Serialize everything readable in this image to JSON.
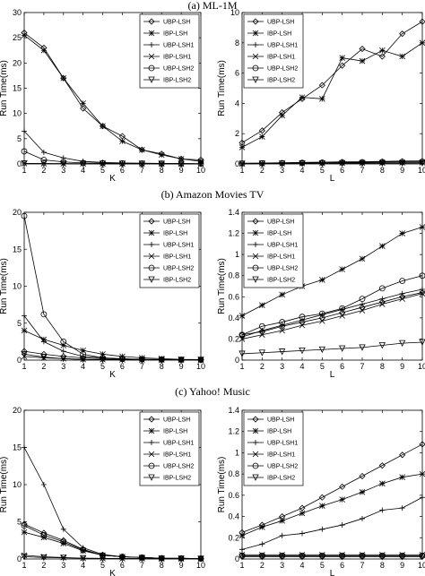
{
  "captions": [
    "(a) ML-1M",
    "(b) Amazon Movies TV",
    "(c) Yahoo! Music"
  ],
  "legend_labels": [
    "UBP-LSH",
    "IBP-LSH",
    "UBP-LSH1",
    "IBP-LSH1",
    "UBP-LSH2",
    "IBP-LSH2"
  ],
  "chart_data": [
    {
      "type": "line",
      "caption_index": 0,
      "xlabel": "K",
      "ylabel": "Run Time(ms)",
      "x": [
        1,
        2,
        3,
        4,
        5,
        6,
        7,
        8,
        9,
        10
      ],
      "xlim": [
        1,
        10
      ],
      "ylim": [
        0,
        30
      ],
      "xticks": [
        1,
        2,
        3,
        4,
        5,
        6,
        7,
        8,
        9,
        10
      ],
      "yticks": [
        0,
        5,
        10,
        15,
        20,
        25,
        30
      ],
      "legend_position": "top-right",
      "series": [
        {
          "name": "UBP-LSH",
          "marker": "diamond",
          "values": [
            26,
            23,
            17,
            11,
            7.5,
            5.5,
            2.8,
            2,
            1,
            0.8
          ]
        },
        {
          "name": "IBP-LSH",
          "marker": "star",
          "values": [
            25.5,
            22.5,
            17,
            12,
            7.5,
            4.5,
            2.8,
            1.8,
            1,
            0.5
          ]
        },
        {
          "name": "UBP-LSH1",
          "marker": "plus",
          "values": [
            6.5,
            2.3,
            1.2,
            0.5,
            0.3,
            0.2,
            0.15,
            0.1,
            0.1,
            0.05
          ]
        },
        {
          "name": "UBP-LSH2",
          "marker": "x",
          "values": [
            0.1,
            0.08,
            0.06,
            0.05,
            0.05,
            0.04,
            0.04,
            0.03,
            0.03,
            0.03
          ]
        },
        {
          "name": "IBP-LSH1",
          "marker": "circle",
          "values": [
            2.5,
            0.8,
            0.4,
            0.2,
            0.15,
            0.1,
            0.08,
            0.06,
            0.05,
            0.04
          ]
        },
        {
          "name": "IBP-LSH2",
          "marker": "triangle",
          "values": [
            0.08,
            0.06,
            0.05,
            0.04,
            0.04,
            0.03,
            0.03,
            0.03,
            0.02,
            0.02
          ]
        }
      ]
    },
    {
      "type": "line",
      "caption_index": 0,
      "xlabel": "L",
      "ylabel": "Run Time(ms)",
      "x": [
        1,
        2,
        3,
        4,
        5,
        6,
        7,
        8,
        9,
        10
      ],
      "xlim": [
        1,
        10
      ],
      "ylim": [
        0,
        10
      ],
      "xticks": [
        1,
        2,
        3,
        4,
        5,
        6,
        7,
        8,
        9,
        10
      ],
      "yticks": [
        0,
        2,
        4,
        6,
        8,
        10
      ],
      "legend_position": "top-left",
      "series": [
        {
          "name": "UBP-LSH",
          "marker": "diamond",
          "values": [
            1.4,
            2.2,
            3.4,
            4.3,
            5.2,
            6.5,
            7.6,
            7.1,
            8.6,
            9.4
          ]
        },
        {
          "name": "IBP-LSH",
          "marker": "star",
          "values": [
            1.1,
            1.8,
            3.2,
            4.4,
            4.3,
            7,
            6.8,
            7.5,
            7.1,
            8
          ]
        },
        {
          "name": "UBP-LSH1",
          "marker": "plus",
          "values": [
            0.05,
            0.06,
            0.08,
            0.1,
            0.12,
            0.14,
            0.15,
            0.17,
            0.19,
            0.2
          ]
        },
        {
          "name": "UBP-LSH2",
          "marker": "x",
          "values": [
            0.02,
            0.03,
            0.03,
            0.04,
            0.05,
            0.06,
            0.07,
            0.07,
            0.08,
            0.09
          ]
        },
        {
          "name": "IBP-LSH1",
          "marker": "circle",
          "values": [
            0.03,
            0.04,
            0.05,
            0.07,
            0.09,
            0.1,
            0.11,
            0.13,
            0.14,
            0.15
          ]
        },
        {
          "name": "IBP-LSH2",
          "marker": "triangle",
          "values": [
            0.01,
            0.02,
            0.02,
            0.03,
            0.03,
            0.04,
            0.04,
            0.05,
            0.05,
            0.06
          ]
        }
      ]
    },
    {
      "type": "line",
      "caption_index": 1,
      "xlabel": "K",
      "ylabel": "Run Time(ms)",
      "x": [
        1,
        2,
        3,
        4,
        5,
        6,
        7,
        8,
        9,
        10
      ],
      "xlim": [
        1,
        10
      ],
      "ylim": [
        0,
        20
      ],
      "xticks": [
        1,
        2,
        3,
        4,
        5,
        6,
        7,
        8,
        9,
        10
      ],
      "yticks": [
        0,
        5,
        10,
        15,
        20
      ],
      "legend_position": "top-right",
      "series": [
        {
          "name": "UBP-LSH",
          "marker": "diamond",
          "values": [
            1.2,
            0.8,
            0.5,
            0.3,
            0.2,
            0.15,
            0.1,
            0.08,
            0.06,
            0.05
          ]
        },
        {
          "name": "IBP-LSH",
          "marker": "star",
          "values": [
            4,
            2.8,
            2,
            1.3,
            0.8,
            0.5,
            0.3,
            0.2,
            0.1,
            0.08
          ]
        },
        {
          "name": "UBP-LSH1",
          "marker": "plus",
          "values": [
            6,
            2.5,
            1.2,
            0.5,
            0.3,
            0.2,
            0.1,
            0.08,
            0.05,
            0.04
          ]
        },
        {
          "name": "UBP-LSH2",
          "marker": "x",
          "values": [
            0.5,
            0.3,
            0.2,
            0.1,
            0.08,
            0.06,
            0.05,
            0.04,
            0.03,
            0.03
          ]
        },
        {
          "name": "IBP-LSH1",
          "marker": "circle",
          "values": [
            19.5,
            6.2,
            2.5,
            0.8,
            0.3,
            0.15,
            0.1,
            0.07,
            0.05,
            0.04
          ]
        },
        {
          "name": "IBP-LSH2",
          "marker": "triangle",
          "values": [
            0.8,
            0.4,
            0.2,
            0.1,
            0.06,
            0.05,
            0.04,
            0.03,
            0.03,
            0.02
          ]
        }
      ]
    },
    {
      "type": "line",
      "caption_index": 1,
      "xlabel": "L",
      "ylabel": "Run Time(ms)",
      "x": [
        1,
        2,
        3,
        4,
        5,
        6,
        7,
        8,
        9,
        10
      ],
      "xlim": [
        1,
        10
      ],
      "ylim": [
        0,
        1.4
      ],
      "xticks": [
        1,
        2,
        3,
        4,
        5,
        6,
        7,
        8,
        9,
        10
      ],
      "yticks": [
        0,
        0.2,
        0.4,
        0.6,
        0.8,
        1,
        1.2,
        1.4
      ],
      "legend_position": "top-left",
      "series": [
        {
          "name": "UBP-LSH",
          "marker": "diamond",
          "values": [
            0.24,
            0.27,
            0.32,
            0.36,
            0.4,
            0.45,
            0.5,
            0.55,
            0.6,
            0.64
          ]
        },
        {
          "name": "IBP-LSH",
          "marker": "star",
          "values": [
            0.42,
            0.52,
            0.62,
            0.7,
            0.76,
            0.86,
            0.96,
            1.08,
            1.2,
            1.26
          ]
        },
        {
          "name": "UBP-LSH1",
          "marker": "plus",
          "values": [
            0.22,
            0.28,
            0.33,
            0.38,
            0.43,
            0.48,
            0.53,
            0.58,
            0.63,
            0.67
          ]
        },
        {
          "name": "UBP-LSH2",
          "marker": "x",
          "values": [
            0.2,
            0.24,
            0.28,
            0.33,
            0.37,
            0.42,
            0.47,
            0.53,
            0.58,
            0.63
          ]
        },
        {
          "name": "IBP-LSH1",
          "marker": "circle",
          "values": [
            0.24,
            0.32,
            0.36,
            0.41,
            0.44,
            0.49,
            0.58,
            0.68,
            0.75,
            0.8
          ]
        },
        {
          "name": "IBP-LSH2",
          "marker": "triangle",
          "values": [
            0.06,
            0.07,
            0.08,
            0.09,
            0.1,
            0.11,
            0.12,
            0.14,
            0.16,
            0.17
          ]
        }
      ]
    },
    {
      "type": "line",
      "caption_index": 2,
      "xlabel": "K",
      "ylabel": "Run Time(ms)",
      "x": [
        1,
        2,
        3,
        4,
        5,
        6,
        7,
        8,
        9,
        10
      ],
      "xlim": [
        1,
        10
      ],
      "ylim": [
        0,
        20
      ],
      "xticks": [
        1,
        2,
        3,
        4,
        5,
        6,
        7,
        8,
        9,
        10
      ],
      "yticks": [
        0,
        5,
        10,
        15,
        20
      ],
      "legend_position": "top-right",
      "series": [
        {
          "name": "UBP-LSH",
          "marker": "diamond",
          "values": [
            4.7,
            3.5,
            2.5,
            1.3,
            0.5,
            0.3,
            0.2,
            0.1,
            0.08,
            0.05
          ]
        },
        {
          "name": "IBP-LSH",
          "marker": "star",
          "values": [
            3.6,
            2.9,
            2.1,
            1.1,
            0.5,
            0.3,
            0.2,
            0.1,
            0.08,
            0.05
          ]
        },
        {
          "name": "UBP-LSH1",
          "marker": "plus",
          "values": [
            15,
            10,
            4,
            1.5,
            0.6,
            0.3,
            0.2,
            0.1,
            0.08,
            0.05
          ]
        },
        {
          "name": "UBP-LSH2",
          "marker": "x",
          "values": [
            0.5,
            0.3,
            0.2,
            0.1,
            0.08,
            0.06,
            0.05,
            0.04,
            0.03,
            0.03
          ]
        },
        {
          "name": "IBP-LSH1",
          "marker": "circle",
          "values": [
            4.5,
            3.2,
            2.3,
            1.2,
            0.5,
            0.3,
            0.2,
            0.1,
            0.08,
            0.05
          ]
        },
        {
          "name": "IBP-LSH2",
          "marker": "triangle",
          "values": [
            0.3,
            0.2,
            0.15,
            0.1,
            0.07,
            0.05,
            0.04,
            0.03,
            0.03,
            0.02
          ]
        }
      ]
    },
    {
      "type": "line",
      "caption_index": 2,
      "xlabel": "L",
      "ylabel": "Run Time(ms)",
      "x": [
        1,
        2,
        3,
        4,
        5,
        6,
        7,
        8,
        9,
        10
      ],
      "xlim": [
        1,
        10
      ],
      "ylim": [
        0,
        1.4
      ],
      "xticks": [
        1,
        2,
        3,
        4,
        5,
        6,
        7,
        8,
        9,
        10
      ],
      "yticks": [
        0,
        0.2,
        0.4,
        0.6,
        0.8,
        1,
        1.2,
        1.4
      ],
      "legend_position": "top-left",
      "series": [
        {
          "name": "UBP-LSH",
          "marker": "diamond",
          "values": [
            0.25,
            0.32,
            0.4,
            0.48,
            0.58,
            0.68,
            0.78,
            0.88,
            0.98,
            1.08
          ]
        },
        {
          "name": "IBP-LSH",
          "marker": "star",
          "values": [
            0.22,
            0.3,
            0.36,
            0.43,
            0.5,
            0.56,
            0.63,
            0.71,
            0.77,
            0.8
          ]
        },
        {
          "name": "UBP-LSH1",
          "marker": "plus",
          "values": [
            0.09,
            0.14,
            0.22,
            0.24,
            0.28,
            0.32,
            0.38,
            0.46,
            0.48,
            0.58
          ]
        },
        {
          "name": "UBP-LSH2",
          "marker": "x",
          "values": [
            0.04,
            0.04,
            0.04,
            0.04,
            0.04,
            0.04,
            0.04,
            0.04,
            0.04,
            0.04
          ]
        },
        {
          "name": "IBP-LSH1",
          "marker": "circle",
          "values": [
            0.03,
            0.03,
            0.03,
            0.03,
            0.03,
            0.03,
            0.03,
            0.03,
            0.03,
            0.03
          ]
        },
        {
          "name": "IBP-LSH2",
          "marker": "triangle",
          "values": [
            0.02,
            0.02,
            0.02,
            0.02,
            0.02,
            0.02,
            0.02,
            0.02,
            0.02,
            0.02
          ]
        }
      ]
    }
  ]
}
